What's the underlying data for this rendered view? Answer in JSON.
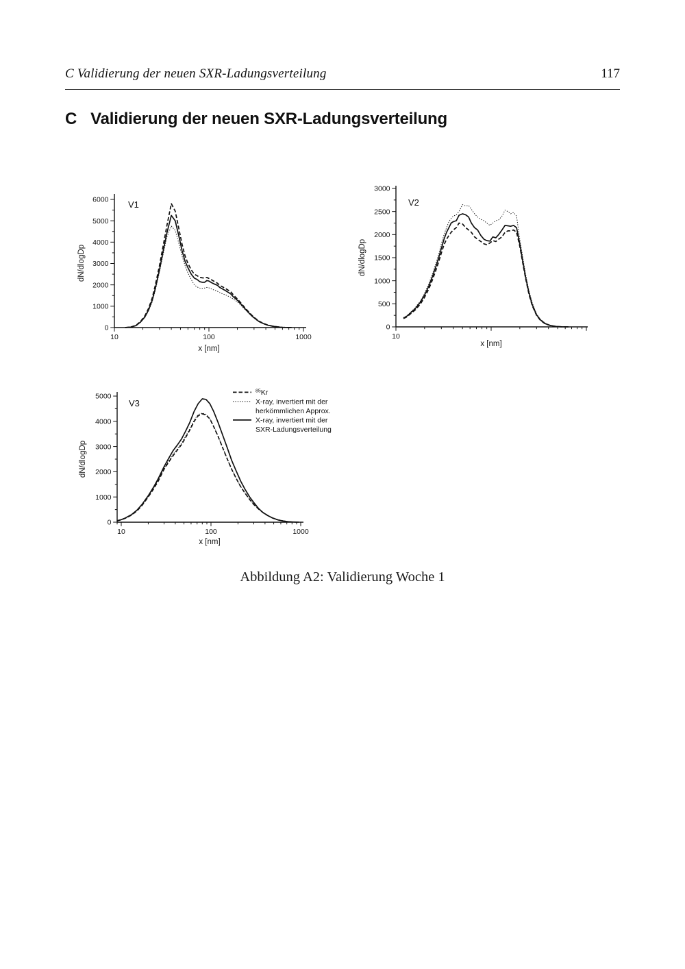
{
  "header": {
    "running_title": "C Validierung der neuen SXR-Ladungsverteilung",
    "page_number": "117"
  },
  "heading": {
    "number": "C",
    "title": "Validierung der neuen SXR-Ladungsverteilung"
  },
  "caption": "Abbildung A2: Validierung Woche 1",
  "chart_data": [
    {
      "id": "V1",
      "type": "line",
      "title": "V1",
      "xlabel": "x [nm]",
      "ylabel": "dN/dlogDp",
      "x_scale": "log",
      "xlim": [
        10,
        1000
      ],
      "ylim": [
        0,
        6000
      ],
      "y_major_step": 1000,
      "x_tick_labels": [
        "10",
        "100",
        "1000"
      ],
      "grid": false,
      "x": [
        13,
        15,
        17,
        19,
        21,
        23,
        25,
        27,
        30,
        33,
        36,
        40,
        44,
        48,
        52,
        56,
        60,
        65,
        70,
        75,
        80,
        85,
        90,
        95,
        100,
        107,
        115,
        123,
        130,
        140,
        150,
        160,
        170,
        182,
        200,
        220,
        240,
        260,
        285,
        310,
        340,
        380,
        420,
        470,
        530,
        600,
        680,
        750
      ],
      "series": [
        {
          "name": "⁸⁵Kr",
          "style": "dashed",
          "y": [
            0,
            30,
            110,
            300,
            550,
            900,
            1350,
            1950,
            2900,
            3900,
            4800,
            5800,
            5450,
            4650,
            3900,
            3350,
            3000,
            2700,
            2500,
            2430,
            2350,
            2330,
            2320,
            2350,
            2300,
            2230,
            2150,
            2080,
            1980,
            1900,
            1830,
            1750,
            1680,
            1520,
            1340,
            1130,
            930,
            760,
            570,
            430,
            300,
            190,
            120,
            70,
            35,
            12,
            3,
            0
          ]
        },
        {
          "name": "X-ray, invertiert mit der herkömmlichen Approx.",
          "style": "dotted",
          "y": [
            0,
            20,
            85,
            250,
            470,
            780,
            1180,
            1700,
            2600,
            3500,
            4250,
            4750,
            4550,
            3950,
            3350,
            2900,
            2550,
            2250,
            2000,
            1900,
            1850,
            1840,
            1850,
            1880,
            1860,
            1800,
            1750,
            1700,
            1640,
            1580,
            1530,
            1470,
            1420,
            1320,
            1210,
            1020,
            850,
            700,
            520,
            390,
            270,
            170,
            100,
            60,
            28,
            8,
            2,
            0
          ]
        },
        {
          "name": "X-ray, invertiert mit der SXR-Ladungsverteilung",
          "style": "solid",
          "y": [
            0,
            25,
            95,
            270,
            500,
            830,
            1250,
            1800,
            2700,
            3650,
            4450,
            5250,
            5000,
            4300,
            3600,
            3100,
            2800,
            2500,
            2320,
            2250,
            2150,
            2120,
            2120,
            2200,
            2180,
            2100,
            2030,
            1980,
            1880,
            1800,
            1730,
            1650,
            1580,
            1430,
            1280,
            1080,
            890,
            720,
            540,
            410,
            280,
            180,
            110,
            65,
            30,
            10,
            2,
            0
          ]
        }
      ]
    },
    {
      "id": "V2",
      "type": "line",
      "title": "V2",
      "xlabel": "x [nm]",
      "ylabel": "dN/dlogDp",
      "x_scale": "log",
      "xlim": [
        10,
        1000
      ],
      "ylim": [
        0,
        3000
      ],
      "y_major_step": 500,
      "x_tick_labels": [
        "10"
      ],
      "grid": false,
      "x": [
        12,
        13,
        14,
        16,
        18,
        20,
        22,
        24,
        26,
        28,
        30,
        32,
        34,
        36,
        38,
        40,
        43,
        46,
        50,
        54,
        58,
        62,
        67,
        72,
        78,
        84,
        90,
        97,
        104,
        112,
        120,
        130,
        140,
        150,
        160,
        172,
        185,
        200,
        215,
        230,
        250,
        270,
        300,
        330,
        370,
        420,
        480,
        550,
        650
      ],
      "series": [
        {
          "name": "⁸⁵Kr",
          "style": "dashed",
          "y": [
            180,
            215,
            270,
            370,
            490,
            640,
            810,
            1000,
            1200,
            1400,
            1600,
            1780,
            1900,
            1980,
            2050,
            2100,
            2150,
            2250,
            2230,
            2150,
            2100,
            2050,
            1950,
            1900,
            1850,
            1800,
            1780,
            1820,
            1870,
            1850,
            1900,
            1950,
            2050,
            2080,
            2080,
            2100,
            2050,
            1750,
            1380,
            1050,
            700,
            460,
            250,
            140,
            65,
            28,
            8,
            2,
            0
          ]
        },
        {
          "name": "X-ray, invertiert mit der herkömmlichen Approx.",
          "style": "dotted",
          "y": [
            200,
            240,
            300,
            420,
            560,
            730,
            920,
            1130,
            1350,
            1570,
            1800,
            2000,
            2150,
            2280,
            2350,
            2400,
            2430,
            2500,
            2650,
            2620,
            2630,
            2550,
            2450,
            2380,
            2330,
            2300,
            2250,
            2200,
            2250,
            2300,
            2320,
            2400,
            2530,
            2500,
            2450,
            2480,
            2400,
            1900,
            1500,
            1150,
            780,
            520,
            280,
            160,
            80,
            35,
            12,
            3,
            0
          ]
        },
        {
          "name": "X-ray, invertiert mit der SXR-Ladungsverteilung",
          "style": "solid",
          "y": [
            190,
            230,
            290,
            400,
            530,
            690,
            870,
            1070,
            1280,
            1490,
            1700,
            1900,
            2050,
            2150,
            2250,
            2280,
            2300,
            2420,
            2450,
            2430,
            2380,
            2250,
            2150,
            2100,
            1980,
            1900,
            1870,
            1860,
            1950,
            1930,
            2000,
            2100,
            2200,
            2190,
            2180,
            2200,
            2150,
            1800,
            1420,
            1080,
            730,
            480,
            260,
            150,
            70,
            30,
            10,
            2,
            0
          ]
        }
      ]
    },
    {
      "id": "V3",
      "type": "line",
      "title": "V3",
      "xlabel": "x [nm]",
      "ylabel": "dN/dlogDp",
      "x_scale": "log",
      "xlim": [
        8.5,
        1100
      ],
      "ylim": [
        0,
        5000
      ],
      "y_major_step": 1000,
      "x_tick_labels": [
        "10",
        "100",
        "1000"
      ],
      "grid": false,
      "legend": {
        "items": [
          {
            "style": "dashed",
            "sup": "85",
            "lines": [
              "Kr"
            ]
          },
          {
            "style": "dotted",
            "lines": [
              "X-ray, invertiert mit der",
              "herkömmlichen Approx."
            ]
          },
          {
            "style": "solid",
            "lines": [
              "X-ray, invertiert mit der",
              "SXR-Ladungsverteilung"
            ]
          }
        ]
      },
      "x": [
        9,
        10,
        11,
        13,
        15,
        17,
        20,
        23,
        26,
        30,
        34,
        38,
        42,
        47,
        52,
        58,
        65,
        72,
        80,
        88,
        97,
        107,
        120,
        135,
        150,
        170,
        190,
        215,
        240,
        270,
        300,
        340,
        380,
        430,
        490,
        560,
        640,
        730,
        830,
        950
      ],
      "series": [
        {
          "name": "⁸⁵Kr",
          "style": "dashed",
          "y": [
            55,
            95,
            150,
            280,
            450,
            660,
            1000,
            1330,
            1650,
            2100,
            2400,
            2650,
            2850,
            3080,
            3350,
            3650,
            4000,
            4220,
            4300,
            4250,
            4100,
            3800,
            3400,
            2950,
            2550,
            2100,
            1750,
            1400,
            1150,
            900,
            700,
            520,
            380,
            260,
            160,
            90,
            45,
            20,
            8,
            3
          ]
        },
        {
          "name": "X-ray, invertiert mit der herkömmlichen Approx.",
          "style": "dotted",
          "y": [
            58,
            98,
            155,
            290,
            465,
            680,
            1020,
            1360,
            1690,
            2140,
            2450,
            2700,
            2900,
            3130,
            3400,
            3700,
            4060,
            4270,
            4330,
            4280,
            4110,
            3810,
            3410,
            2960,
            2560,
            2110,
            1760,
            1410,
            1160,
            905,
            705,
            522,
            382,
            262,
            162,
            92,
            46,
            21,
            9,
            4
          ]
        },
        {
          "name": "X-ray, invertiert mit der SXR-Ladungsverteilung",
          "style": "solid",
          "y": [
            60,
            100,
            160,
            300,
            480,
            700,
            1050,
            1400,
            1750,
            2200,
            2550,
            2850,
            3050,
            3300,
            3600,
            3950,
            4400,
            4700,
            4890,
            4870,
            4700,
            4400,
            3950,
            3450,
            3000,
            2450,
            2050,
            1620,
            1300,
            1000,
            780,
            540,
            380,
            260,
            160,
            90,
            45,
            20,
            8,
            3
          ]
        }
      ]
    }
  ]
}
